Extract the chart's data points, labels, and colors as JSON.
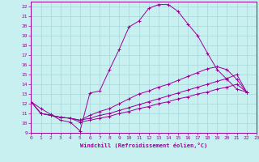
{
  "xlabel": "Windchill (Refroidissement éolien,°C)",
  "bg_color": "#c8f0f0",
  "grid_color": "#a8d8d8",
  "line_color": "#990099",
  "xlim": [
    0,
    23
  ],
  "ylim": [
    9,
    22.5
  ],
  "xticks": [
    0,
    1,
    2,
    3,
    4,
    5,
    6,
    7,
    8,
    9,
    10,
    11,
    12,
    13,
    14,
    15,
    16,
    17,
    18,
    19,
    20,
    21,
    22,
    23
  ],
  "yticks": [
    9,
    10,
    11,
    12,
    13,
    14,
    15,
    16,
    17,
    18,
    19,
    20,
    21,
    22
  ],
  "series": [
    {
      "x": [
        0,
        1,
        2,
        3,
        4,
        5,
        6,
        7,
        8,
        9,
        10,
        11,
        12,
        13,
        14,
        15,
        16,
        17,
        18,
        19,
        20,
        21,
        22
      ],
      "y": [
        12.2,
        11.5,
        10.9,
        10.3,
        10.1,
        9.2,
        13.1,
        13.3,
        15.5,
        17.6,
        19.9,
        20.5,
        21.8,
        22.2,
        22.2,
        21.5,
        20.2,
        19.0,
        17.2,
        15.5,
        14.5,
        13.5,
        13.2
      ]
    },
    {
      "x": [
        0,
        1,
        2,
        3,
        4,
        5,
        6,
        7,
        8,
        9,
        10,
        11,
        12,
        13,
        14,
        15,
        16,
        17,
        18,
        19,
        20,
        21,
        22
      ],
      "y": [
        12.2,
        11.0,
        10.8,
        10.6,
        10.5,
        10.3,
        10.8,
        11.2,
        11.5,
        12.0,
        12.5,
        13.0,
        13.3,
        13.7,
        14.0,
        14.4,
        14.8,
        15.2,
        15.6,
        15.8,
        15.5,
        14.5,
        13.2
      ]
    },
    {
      "x": [
        0,
        1,
        2,
        3,
        4,
        5,
        6,
        7,
        8,
        9,
        10,
        11,
        12,
        13,
        14,
        15,
        16,
        17,
        18,
        19,
        20,
        21,
        22
      ],
      "y": [
        12.2,
        11.0,
        10.8,
        10.6,
        10.5,
        10.3,
        10.5,
        10.8,
        11.0,
        11.3,
        11.6,
        11.9,
        12.2,
        12.5,
        12.8,
        13.1,
        13.4,
        13.7,
        14.0,
        14.3,
        14.6,
        15.0,
        13.2
      ]
    },
    {
      "x": [
        0,
        1,
        2,
        3,
        4,
        5,
        6,
        7,
        8,
        9,
        10,
        11,
        12,
        13,
        14,
        15,
        16,
        17,
        18,
        19,
        20,
        21,
        22
      ],
      "y": [
        12.2,
        11.0,
        10.8,
        10.6,
        10.5,
        10.1,
        10.3,
        10.5,
        10.7,
        11.0,
        11.2,
        11.5,
        11.7,
        12.0,
        12.2,
        12.5,
        12.7,
        13.0,
        13.2,
        13.5,
        13.7,
        14.0,
        13.2
      ]
    }
  ]
}
